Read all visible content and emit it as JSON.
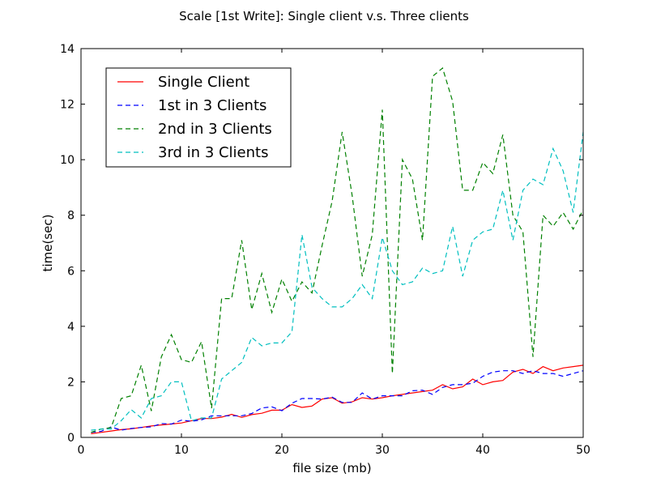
{
  "chart_data": {
    "type": "line",
    "title": "Scale [1st Write]: Single client  v.s. Three clients",
    "xlabel": "file size (mb)",
    "ylabel": "time(sec)",
    "xlim": [
      0,
      50
    ],
    "ylim": [
      0,
      14
    ],
    "xticks": [
      0,
      10,
      20,
      30,
      40,
      50
    ],
    "yticks": [
      0,
      2,
      4,
      6,
      8,
      10,
      12,
      14
    ],
    "grid": false,
    "legend_position": "top-left",
    "x": [
      1,
      2,
      3,
      4,
      5,
      6,
      7,
      8,
      9,
      10,
      11,
      12,
      13,
      14,
      15,
      16,
      17,
      18,
      19,
      20,
      21,
      22,
      23,
      24,
      25,
      26,
      27,
      28,
      29,
      30,
      31,
      32,
      33,
      34,
      35,
      36,
      37,
      38,
      39,
      40,
      41,
      42,
      43,
      44,
      45,
      46,
      47,
      48,
      49,
      50
    ],
    "series": [
      {
        "name": "Single Client",
        "color": "#ff0000",
        "style": "solid",
        "values": [
          0.13,
          0.18,
          0.23,
          0.28,
          0.31,
          0.36,
          0.41,
          0.45,
          0.48,
          0.52,
          0.6,
          0.68,
          0.68,
          0.73,
          0.83,
          0.72,
          0.82,
          0.87,
          0.98,
          0.98,
          1.18,
          1.08,
          1.13,
          1.38,
          1.43,
          1.23,
          1.28,
          1.43,
          1.38,
          1.43,
          1.5,
          1.55,
          1.6,
          1.65,
          1.7,
          1.9,
          1.75,
          1.82,
          2.1,
          1.9,
          2.0,
          2.05,
          2.35,
          2.45,
          2.3,
          2.55,
          2.4,
          2.5,
          2.55,
          2.6
        ]
      },
      {
        "name": "1st in 3 Clients",
        "color": "#0000ff",
        "style": "dashed",
        "values": [
          0.18,
          0.22,
          0.38,
          0.26,
          0.32,
          0.36,
          0.38,
          0.5,
          0.48,
          0.62,
          0.58,
          0.63,
          0.78,
          0.78,
          0.78,
          0.78,
          0.86,
          1.06,
          1.1,
          0.96,
          1.23,
          1.4,
          1.4,
          1.38,
          1.45,
          1.26,
          1.26,
          1.6,
          1.38,
          1.5,
          1.5,
          1.5,
          1.68,
          1.7,
          1.55,
          1.8,
          1.9,
          1.9,
          1.95,
          2.2,
          2.35,
          2.4,
          2.4,
          2.3,
          2.4,
          2.3,
          2.3,
          2.2,
          2.3,
          2.4
        ]
      },
      {
        "name": "2nd in 3 Clients",
        "color": "#008000",
        "style": "dashed",
        "values": [
          0.18,
          0.3,
          0.35,
          1.4,
          1.5,
          2.6,
          0.95,
          2.9,
          3.7,
          2.8,
          2.7,
          3.45,
          1.05,
          5.0,
          5.0,
          7.1,
          4.6,
          5.9,
          4.5,
          5.7,
          4.9,
          5.6,
          5.2,
          6.9,
          8.5,
          11.0,
          8.7,
          5.8,
          7.3,
          11.8,
          2.3,
          10.0,
          9.3,
          7.1,
          13.0,
          13.3,
          12.1,
          8.9,
          8.9,
          9.9,
          9.5,
          10.9,
          8.0,
          7.4,
          2.9,
          8.0,
          7.6,
          8.1,
          7.5,
          8.2
        ]
      },
      {
        "name": "3rd in 3 Clients",
        "color": "#00bfbf",
        "style": "dashed",
        "values": [
          0.26,
          0.3,
          0.3,
          0.6,
          1.0,
          0.7,
          1.4,
          1.5,
          2.0,
          2.0,
          0.6,
          0.7,
          0.7,
          2.1,
          2.4,
          2.7,
          3.6,
          3.3,
          3.4,
          3.4,
          3.8,
          7.3,
          5.4,
          5.0,
          4.7,
          4.7,
          5.0,
          5.5,
          5.0,
          7.2,
          6.0,
          5.5,
          5.6,
          6.1,
          5.9,
          6.0,
          7.6,
          5.8,
          7.1,
          7.4,
          7.5,
          8.9,
          7.1,
          8.9,
          9.3,
          9.1,
          10.4,
          9.6,
          8.1,
          11.0
        ]
      }
    ]
  }
}
